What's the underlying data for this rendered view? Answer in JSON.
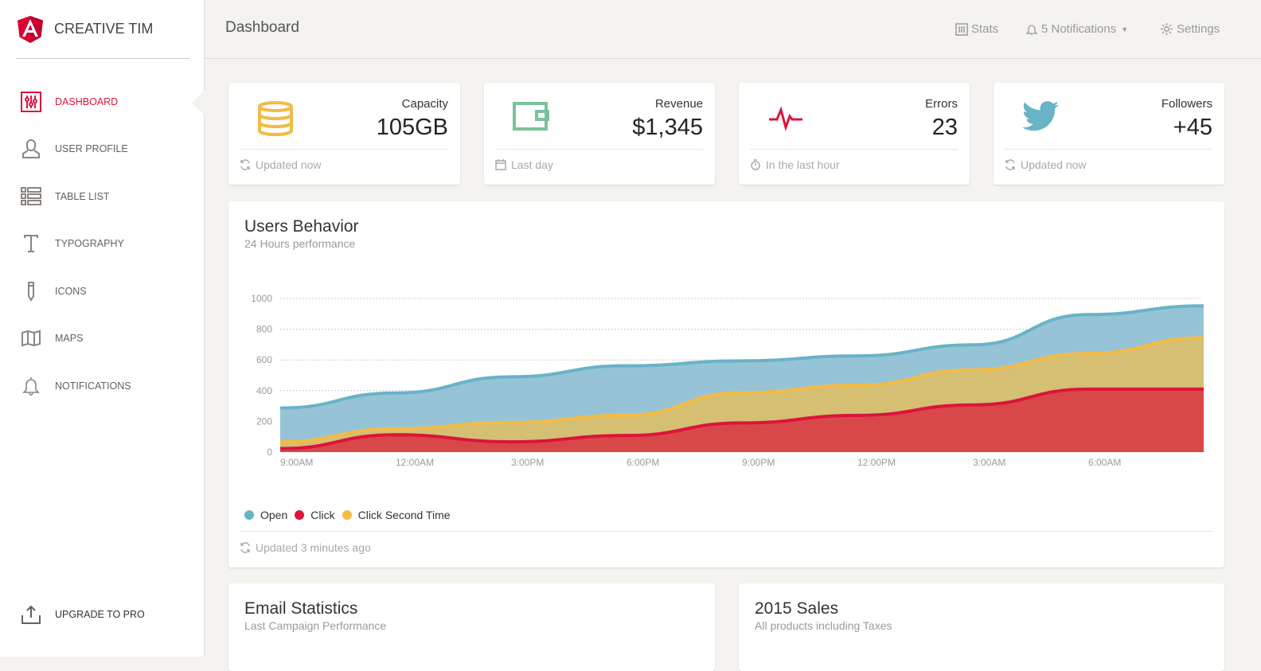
{
  "brand": {
    "name": "CREATIVE TIM",
    "accent": "#dc143c"
  },
  "sidebar": {
    "items": [
      {
        "label": "DASHBOARD",
        "icon": "dashboard-sliders-icon",
        "active": true
      },
      {
        "label": "USER PROFILE",
        "icon": "user-icon"
      },
      {
        "label": "TABLE LIST",
        "icon": "table-list-icon"
      },
      {
        "label": "TYPOGRAPHY",
        "icon": "typography-icon"
      },
      {
        "label": "ICONS",
        "icon": "pencil-icon"
      },
      {
        "label": "MAPS",
        "icon": "map-icon"
      },
      {
        "label": "NOTIFICATIONS",
        "icon": "bell-icon"
      }
    ],
    "upgrade": "UPGRADE TO PRO"
  },
  "topbar": {
    "title": "Dashboard",
    "stats": "Stats",
    "notifications": "5 Notifications",
    "settings": "Settings"
  },
  "stats": [
    {
      "label": "Capacity",
      "value": "105GB",
      "footer": "Updated now",
      "icon": "database-icon",
      "color": "#f3bb45"
    },
    {
      "label": "Revenue",
      "value": "$1,345",
      "footer": "Last day",
      "icon": "wallet-icon",
      "color": "#7ac29a"
    },
    {
      "label": "Errors",
      "value": "23",
      "footer": "In the last hour",
      "icon": "pulse-icon",
      "color": "#dc143c"
    },
    {
      "label": "Followers",
      "value": "+45",
      "footer": "Updated now",
      "icon": "twitter-icon",
      "color": "#68b3c8"
    }
  ],
  "behavior": {
    "title": "Users Behavior",
    "subtitle": "24 Hours performance",
    "footer": "Updated 3 minutes ago"
  },
  "email": {
    "title": "Email Statistics",
    "subtitle": "Last Campaign Performance"
  },
  "sales": {
    "title": "2015 Sales",
    "subtitle": "All products including Taxes"
  },
  "chart_data": {
    "type": "area",
    "categories": [
      "9:00AM",
      "12:00AM",
      "3:00PM",
      "6:00PM",
      "9:00PM",
      "12:00PM",
      "3:00AM",
      "6:00AM",
      ""
    ],
    "yticks": [
      0,
      200,
      400,
      600,
      800,
      1000
    ],
    "ylim": [
      0,
      1000
    ],
    "grid": true,
    "legend": "bottom-left",
    "series": [
      {
        "name": "Open",
        "color": "#68b3c8",
        "fill": "#96c4d6",
        "values": [
          287,
          385,
          490,
          562,
          594,
          626,
          698,
          895,
          952
        ]
      },
      {
        "name": "Click Second Time",
        "color": "#f3bb45",
        "fill": "#d4bf73",
        "values": [
          67,
          152,
          193,
          240,
          387,
          435,
          535,
          642,
          744
        ]
      },
      {
        "name": "Click",
        "color": "#dc143c",
        "fill": "#d94848",
        "values": [
          23,
          113,
          67,
          108,
          190,
          239,
          307,
          410,
          410
        ]
      }
    ],
    "legend_order": [
      "Open",
      "Click",
      "Click Second Time"
    ]
  }
}
